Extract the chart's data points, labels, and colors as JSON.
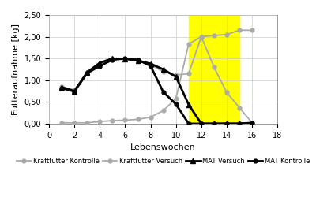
{
  "kraftfutter_kontrolle_x": [
    1,
    2,
    3,
    4,
    5,
    6,
    7,
    8,
    9,
    10,
    11,
    12,
    13,
    14,
    15,
    16
  ],
  "kraftfutter_kontrolle_y": [
    0.85,
    0.78,
    1.17,
    1.32,
    1.48,
    1.5,
    1.45,
    1.35,
    1.2,
    1.12,
    1.15,
    2.0,
    2.03,
    2.05,
    2.15,
    2.15
  ],
  "kraftfutter_versuch_x": [
    1,
    2,
    3,
    4,
    5,
    6,
    7,
    8,
    9,
    10,
    11,
    12,
    13,
    14,
    15,
    16
  ],
  "kraftfutter_versuch_y": [
    0.02,
    0.02,
    0.02,
    0.05,
    0.07,
    0.08,
    0.1,
    0.15,
    0.3,
    0.58,
    1.83,
    2.0,
    1.3,
    0.72,
    0.37,
    0.02
  ],
  "mat_versuch_x": [
    1,
    2,
    3,
    4,
    5,
    6,
    7,
    8,
    9,
    10,
    11,
    12,
    13,
    14,
    15,
    16
  ],
  "mat_versuch_y": [
    0.84,
    0.75,
    1.18,
    1.4,
    1.5,
    1.49,
    1.45,
    1.38,
    1.25,
    1.08,
    0.44,
    0.0,
    0.0,
    0.0,
    0.0,
    0.0
  ],
  "mat_kontrolle_x": [
    1,
    2,
    3,
    4,
    5,
    6,
    7,
    8,
    9,
    10,
    11,
    12,
    13,
    14,
    15,
    16
  ],
  "mat_kontrolle_y": [
    0.82,
    0.74,
    1.16,
    1.33,
    1.47,
    1.5,
    1.47,
    1.33,
    0.73,
    0.45,
    0.0,
    0.0,
    0.0,
    0.0,
    0.0,
    0.02
  ],
  "yellow_xmin": 11,
  "yellow_xmax": 15,
  "xlim": [
    0,
    18
  ],
  "ylim": [
    0.0,
    2.5
  ],
  "xticks": [
    0,
    2,
    4,
    6,
    8,
    10,
    12,
    14,
    16,
    18
  ],
  "yticks": [
    0.0,
    0.5,
    1.0,
    1.5,
    2.0,
    2.5
  ],
  "ytick_labels": [
    "0,00",
    "0,50",
    "1,00",
    "1,50",
    "2,00",
    "2,50"
  ],
  "xlabel": "Lebenswochen",
  "ylabel": "Futteraufnahme [kg]",
  "color_kk": "#aaaaaa",
  "color_kv": "#aaaaaa",
  "color_mv": "#000000",
  "color_mk": "#000000",
  "yellow_color": "#ffff00",
  "legend_labels": [
    "Kraftfutter Kontrolle",
    "Kraftfutter Versuch",
    "MAT Versuch",
    "MAT Kontrolle"
  ],
  "linewidth": 1.3,
  "markersize": 3.5
}
